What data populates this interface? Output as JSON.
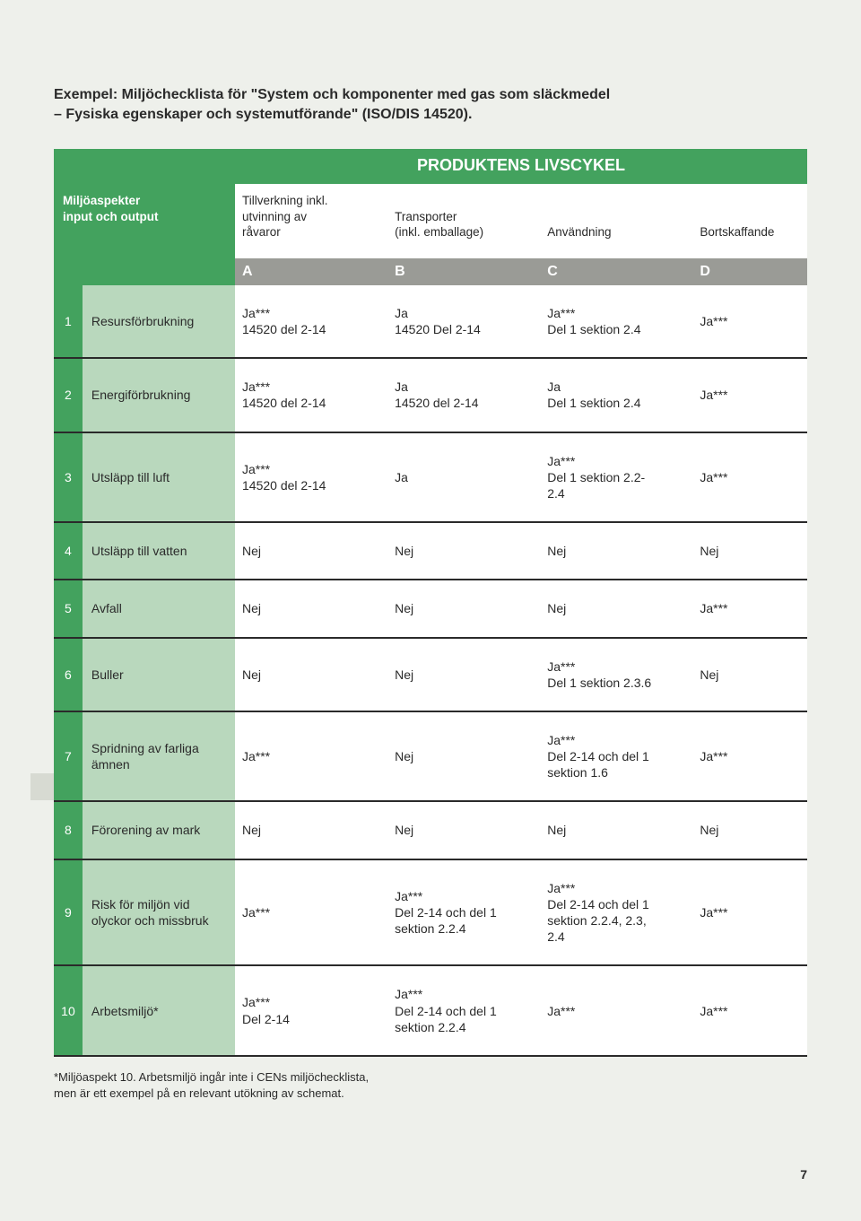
{
  "intro_line1": "Exempel: Miljöchecklista för \"System och komponenter med gas som släckmedel",
  "intro_line2": "– Fysiska egenskaper och systemutförande\" (ISO/DIS 14520).",
  "table_title": "PRODUKTENS LIVSCYKEL",
  "header_left_line1": "Miljöaspekter",
  "header_left_line2": "input och output",
  "colA_line1": "Tillverkning inkl.",
  "colA_line2": "utvinning av",
  "colA_line3": "råvaror",
  "colB_line1": "Transporter",
  "colB_line2": "(inkl. emballage)",
  "colC_line1": "Användning",
  "colD_line1": "Bortskaffande",
  "letters": {
    "a": "A",
    "b": "B",
    "c": "C",
    "d": "D"
  },
  "rows": [
    {
      "n": "1",
      "label": "Resursförbrukning",
      "a": "Ja***\n14520 del 2-14",
      "b": "Ja\n14520 Del 2-14",
      "c": "Ja***\nDel 1 sektion 2.4",
      "d": "Ja***"
    },
    {
      "n": "2",
      "label": "Energiförbrukning",
      "a": "Ja***\n14520 del 2-14",
      "b": "Ja\n14520 del 2-14",
      "c": "Ja\nDel 1 sektion 2.4",
      "d": "Ja***"
    },
    {
      "n": "3",
      "label": "Utsläpp till luft",
      "a": "Ja***\n14520 del 2-14",
      "b": "Ja",
      "c": "Ja***\nDel 1 sektion 2.2-\n2.4",
      "d": "Ja***"
    },
    {
      "n": "4",
      "label": "Utsläpp till vatten",
      "a": "Nej",
      "b": "Nej",
      "c": "Nej",
      "d": "Nej"
    },
    {
      "n": "5",
      "label": "Avfall",
      "a": "Nej",
      "b": "Nej",
      "c": "Nej",
      "d": "Ja***"
    },
    {
      "n": "6",
      "label": "Buller",
      "a": "Nej",
      "b": "Nej",
      "c": "Ja***\nDel 1 sektion 2.3.6",
      "d": "Nej"
    },
    {
      "n": "7",
      "label": "Spridning av farliga ämnen",
      "a": "Ja***",
      "b": "Nej",
      "c": "Ja***\nDel 2-14 och del 1\nsektion 1.6",
      "d": "Ja***"
    },
    {
      "n": "8",
      "label": "Förorening av mark",
      "a": "Nej",
      "b": "Nej",
      "c": "Nej",
      "d": "Nej"
    },
    {
      "n": "9",
      "label": "Risk för miljön vid olyckor och missbruk",
      "a": "Ja***",
      "b": "Ja***\nDel 2-14 och del 1\nsektion 2.2.4",
      "c": "Ja***\nDel 2-14 och del 1\nsektion 2.2.4, 2.3,\n2.4",
      "d": "Ja***"
    },
    {
      "n": "10",
      "label": "Arbetsmiljö*",
      "a": "Ja***\nDel 2-14",
      "b": "Ja***\nDel 2-14 och del 1\nsektion 2.2.4",
      "c": "Ja***",
      "d": "Ja***"
    }
  ],
  "footnote_line1": "*Miljöaspekt 10. Arbetsmiljö ingår inte i CENs miljöchecklista,",
  "footnote_line2": "men är ett exempel på en relevant utökning av schemat.",
  "page_number": "7",
  "colors": {
    "page_bg": "#eef0eb",
    "green": "#43a25e",
    "green_light": "#b9d8bd",
    "grey_header": "#9a9b96",
    "row_border": "#2a2a2a",
    "side_tab": "#d7dad2"
  }
}
